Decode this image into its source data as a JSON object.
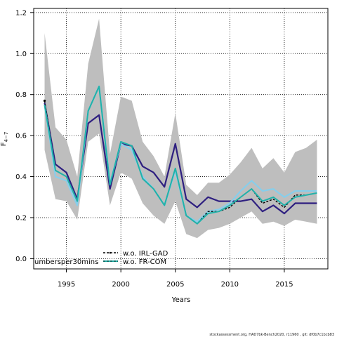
{
  "chart_data": {
    "type": "line",
    "xlabel": "Years",
    "ylabel_main": "F",
    "ylabel_sub": "4−7",
    "xlim": [
      1992,
      2019
    ],
    "ylim": [
      -0.05,
      1.22
    ],
    "xticks": [
      1995,
      2000,
      2005,
      2010,
      2015
    ],
    "yticks": [
      0.0,
      0.2,
      0.4,
      0.6,
      0.8,
      1.0,
      1.2
    ],
    "grid": true,
    "legend_position": "bottom-left",
    "legend_overflow_text": "umbersper30mins",
    "footer": "stockassessment.org, HAD7bk-Bench2020, r11960 ,  git: df0b7c1bcb83",
    "x": [
      1993,
      1994,
      1995,
      1996,
      1997,
      1998,
      1999,
      2000,
      2001,
      2002,
      2003,
      2004,
      2005,
      2006,
      2007,
      2008,
      2009,
      2010,
      2011,
      2012,
      2013,
      2014,
      2015,
      2016,
      2017,
      2018
    ],
    "band": {
      "color": "#bebebe",
      "upper": [
        1.1,
        0.64,
        0.58,
        0.4,
        0.95,
        1.17,
        0.51,
        0.79,
        0.77,
        0.57,
        0.5,
        0.4,
        0.71,
        0.36,
        0.31,
        0.37,
        0.37,
        0.41,
        0.47,
        0.54,
        0.44,
        0.49,
        0.42,
        0.52,
        0.54,
        0.58
      ],
      "lower": [
        0.53,
        0.29,
        0.28,
        0.19,
        0.57,
        0.61,
        0.26,
        0.42,
        0.39,
        0.27,
        0.21,
        0.17,
        0.28,
        0.12,
        0.1,
        0.14,
        0.15,
        0.17,
        0.2,
        0.23,
        0.17,
        0.18,
        0.16,
        0.19,
        0.18,
        0.17
      ]
    },
    "series": [
      {
        "name": "",
        "color": "#2e1f80",
        "width": 2.2,
        "dash": "",
        "values": [
          0.76,
          0.46,
          0.42,
          0.29,
          0.66,
          0.7,
          0.34,
          0.56,
          0.55,
          0.45,
          0.42,
          0.35,
          0.56,
          0.29,
          0.25,
          0.3,
          0.28,
          0.28,
          0.28,
          0.29,
          0.23,
          0.26,
          0.22,
          0.27,
          0.27,
          0.27
        ]
      },
      {
        "name": "",
        "color": "#87ceeb",
        "width": 2.2,
        "dash": "",
        "values": [
          0.75,
          0.4,
          0.38,
          0.26,
          0.72,
          0.84,
          0.37,
          0.56,
          0.53,
          0.4,
          0.34,
          0.26,
          0.43,
          0.21,
          0.18,
          0.23,
          0.24,
          0.27,
          0.33,
          0.38,
          0.33,
          0.34,
          0.3,
          0.33,
          0.33,
          0.33
        ]
      },
      {
        "name": "w.o. IRL-GAD",
        "color": "#000000",
        "width": 1.4,
        "dash": "3,2",
        "values": [
          0.77,
          0.43,
          0.4,
          0.28,
          0.72,
          0.84,
          0.36,
          0.57,
          0.55,
          0.39,
          0.34,
          0.26,
          0.44,
          0.21,
          0.17,
          0.23,
          0.23,
          0.25,
          0.3,
          0.34,
          0.27,
          0.29,
          0.25,
          0.31,
          0.31,
          0.32
        ]
      },
      {
        "name": "w.o. FR-COM",
        "color": "#20b2aa",
        "width": 2.0,
        "dash": "",
        "values": [
          0.75,
          0.43,
          0.4,
          0.28,
          0.72,
          0.84,
          0.36,
          0.57,
          0.55,
          0.39,
          0.34,
          0.26,
          0.44,
          0.21,
          0.17,
          0.22,
          0.23,
          0.26,
          0.3,
          0.34,
          0.28,
          0.3,
          0.26,
          0.3,
          0.31,
          0.32
        ]
      }
    ]
  }
}
